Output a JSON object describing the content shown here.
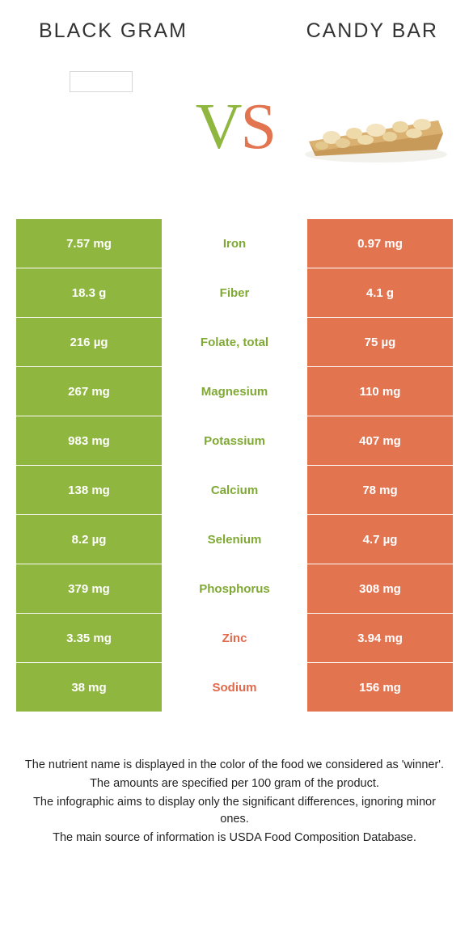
{
  "header": {
    "left_title": "BLACK GRAM",
    "right_title": "CANDY BAR"
  },
  "vs": {
    "v": "V",
    "s": "S"
  },
  "colors": {
    "left": "#8fb63e",
    "right": "#e37450",
    "winner_left_text": "#7fa934",
    "winner_right_text": "#e0694b"
  },
  "table": {
    "rows": [
      {
        "left": "7.57 mg",
        "name": "Iron",
        "right": "0.97 mg",
        "winner": "left"
      },
      {
        "left": "18.3 g",
        "name": "Fiber",
        "right": "4.1 g",
        "winner": "left"
      },
      {
        "left": "216 µg",
        "name": "Folate, total",
        "right": "75 µg",
        "winner": "left"
      },
      {
        "left": "267 mg",
        "name": "Magnesium",
        "right": "110 mg",
        "winner": "left"
      },
      {
        "left": "983 mg",
        "name": "Potassium",
        "right": "407 mg",
        "winner": "left"
      },
      {
        "left": "138 mg",
        "name": "Calcium",
        "right": "78 mg",
        "winner": "left"
      },
      {
        "left": "8.2 µg",
        "name": "Selenium",
        "right": "4.7 µg",
        "winner": "left"
      },
      {
        "left": "379 mg",
        "name": "Phosphorus",
        "right": "308 mg",
        "winner": "left"
      },
      {
        "left": "3.35 mg",
        "name": "Zinc",
        "right": "3.94 mg",
        "winner": "right"
      },
      {
        "left": "38 mg",
        "name": "Sodium",
        "right": "156 mg",
        "winner": "right"
      }
    ]
  },
  "footer": {
    "line1": "The nutrient name is displayed in the color of the food we considered as 'winner'.",
    "line2": "The amounts are specified per 100 gram of the product.",
    "line3": "The infographic aims to display only the significant differences, ignoring minor ones.",
    "line4": "The main source of information is USDA Food Composition Database."
  }
}
